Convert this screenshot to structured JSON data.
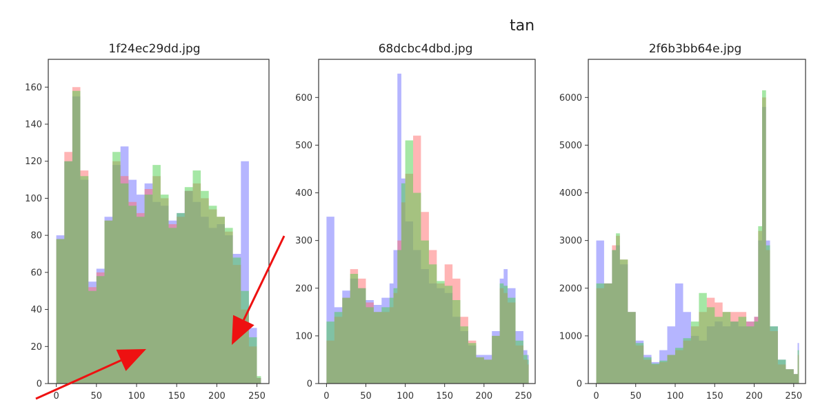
{
  "figure": {
    "suptitle": "tan"
  },
  "channel_colors": {
    "blue": "#6b6bff",
    "red": "#ff6b6b",
    "green": "#4cd04c",
    "overlap": "#5a9a38"
  },
  "annotation_arrow_color": "#ee1111",
  "chart_data": [
    {
      "type": "histogram",
      "title": "1f24ec29dd.jpg",
      "xlim": [
        -10,
        265
      ],
      "ylim": [
        0,
        175
      ],
      "xticks": [
        0,
        50,
        100,
        150,
        200,
        250
      ],
      "yticks": [
        0,
        20,
        40,
        60,
        80,
        100,
        120,
        140,
        160
      ],
      "series_order": [
        "blue",
        "red",
        "green"
      ],
      "x": [
        0,
        10,
        20,
        30,
        40,
        50,
        60,
        70,
        80,
        90,
        100,
        110,
        120,
        130,
        140,
        150,
        160,
        170,
        180,
        190,
        200,
        210,
        220,
        230,
        240,
        250,
        255
      ],
      "series": [
        {
          "channel": "blue",
          "values": [
            80,
            120,
            155,
            110,
            55,
            62,
            90,
            118,
            128,
            110,
            102,
            108,
            98,
            96,
            88,
            92,
            104,
            98,
            90,
            84,
            86,
            80,
            70,
            120,
            30,
            3,
            0
          ]
        },
        {
          "channel": "red",
          "values": [
            78,
            125,
            160,
            115,
            52,
            60,
            88,
            120,
            112,
            98,
            92,
            105,
            112,
            100,
            86,
            90,
            104,
            108,
            100,
            94,
            90,
            82,
            64,
            40,
            20,
            3,
            0
          ]
        },
        {
          "channel": "green",
          "values": [
            78,
            120,
            158,
            112,
            50,
            58,
            88,
            125,
            108,
            96,
            90,
            102,
            118,
            102,
            84,
            92,
            106,
            115,
            104,
            96,
            90,
            84,
            68,
            50,
            25,
            4,
            0
          ]
        }
      ]
    },
    {
      "type": "histogram",
      "title": "68dcbc4dbd.jpg",
      "xlim": [
        -10,
        265
      ],
      "ylim": [
        0,
        680
      ],
      "xticks": [
        0,
        50,
        100,
        150,
        200,
        250
      ],
      "yticks": [
        0,
        100,
        200,
        300,
        400,
        500,
        600
      ],
      "series_order": [
        "blue",
        "red",
        "green"
      ],
      "x": [
        0,
        10,
        20,
        30,
        40,
        50,
        60,
        70,
        80,
        85,
        90,
        95,
        100,
        110,
        120,
        130,
        140,
        150,
        160,
        170,
        180,
        190,
        200,
        210,
        220,
        225,
        230,
        240,
        250,
        255
      ],
      "series": [
        {
          "channel": "blue",
          "values": [
            350,
            160,
            195,
            220,
            200,
            175,
            165,
            180,
            210,
            280,
            650,
            430,
            340,
            280,
            240,
            210,
            200,
            190,
            140,
            110,
            80,
            60,
            60,
            110,
            220,
            240,
            200,
            110,
            70,
            60
          ]
        },
        {
          "channel": "red",
          "values": [
            90,
            140,
            180,
            240,
            220,
            170,
            150,
            150,
            160,
            190,
            300,
            380,
            440,
            520,
            360,
            280,
            210,
            250,
            220,
            140,
            90,
            55,
            50,
            100,
            200,
            190,
            170,
            80,
            50,
            40
          ]
        },
        {
          "channel": "green",
          "values": [
            130,
            150,
            180,
            230,
            200,
            160,
            150,
            160,
            180,
            200,
            280,
            420,
            510,
            400,
            300,
            250,
            215,
            205,
            175,
            120,
            85,
            55,
            50,
            100,
            210,
            205,
            180,
            90,
            60,
            50
          ]
        }
      ]
    },
    {
      "type": "histogram",
      "title": "2f6b3bb64e.jpg",
      "xlim": [
        -10,
        265
      ],
      "ylim": [
        0,
        6800
      ],
      "xticks": [
        0,
        50,
        100,
        150,
        200,
        250
      ],
      "yticks": [
        0,
        1000,
        2000,
        3000,
        4000,
        5000,
        6000
      ],
      "series_order": [
        "blue",
        "red",
        "green"
      ],
      "x": [
        0,
        10,
        20,
        25,
        30,
        40,
        50,
        60,
        70,
        80,
        90,
        100,
        110,
        120,
        130,
        140,
        150,
        160,
        170,
        180,
        190,
        200,
        205,
        210,
        215,
        220,
        230,
        240,
        250,
        255
      ],
      "series": [
        {
          "channel": "blue",
          "values": [
            3000,
            2100,
            2800,
            2900,
            2500,
            1500,
            900,
            600,
            450,
            700,
            1200,
            2100,
            1500,
            1000,
            900,
            1200,
            1300,
            1200,
            1300,
            1200,
            1300,
            1400,
            3000,
            5800,
            3000,
            1200,
            500,
            300,
            200,
            850
          ]
        },
        {
          "channel": "red",
          "values": [
            2000,
            2100,
            2900,
            3100,
            2600,
            1500,
            800,
            500,
            400,
            450,
            600,
            700,
            900,
            1200,
            1500,
            1800,
            1700,
            1500,
            1500,
            1500,
            1300,
            1400,
            3200,
            6000,
            2800,
            1100,
            400,
            300,
            200,
            600
          ]
        },
        {
          "channel": "green",
          "values": [
            2100,
            2100,
            2800,
            3150,
            2600,
            1500,
            850,
            550,
            420,
            480,
            600,
            750,
            950,
            1300,
            1900,
            1600,
            1400,
            1500,
            1300,
            1400,
            1200,
            1300,
            3300,
            6150,
            2900,
            1200,
            500,
            300,
            200,
            700
          ]
        }
      ]
    }
  ]
}
